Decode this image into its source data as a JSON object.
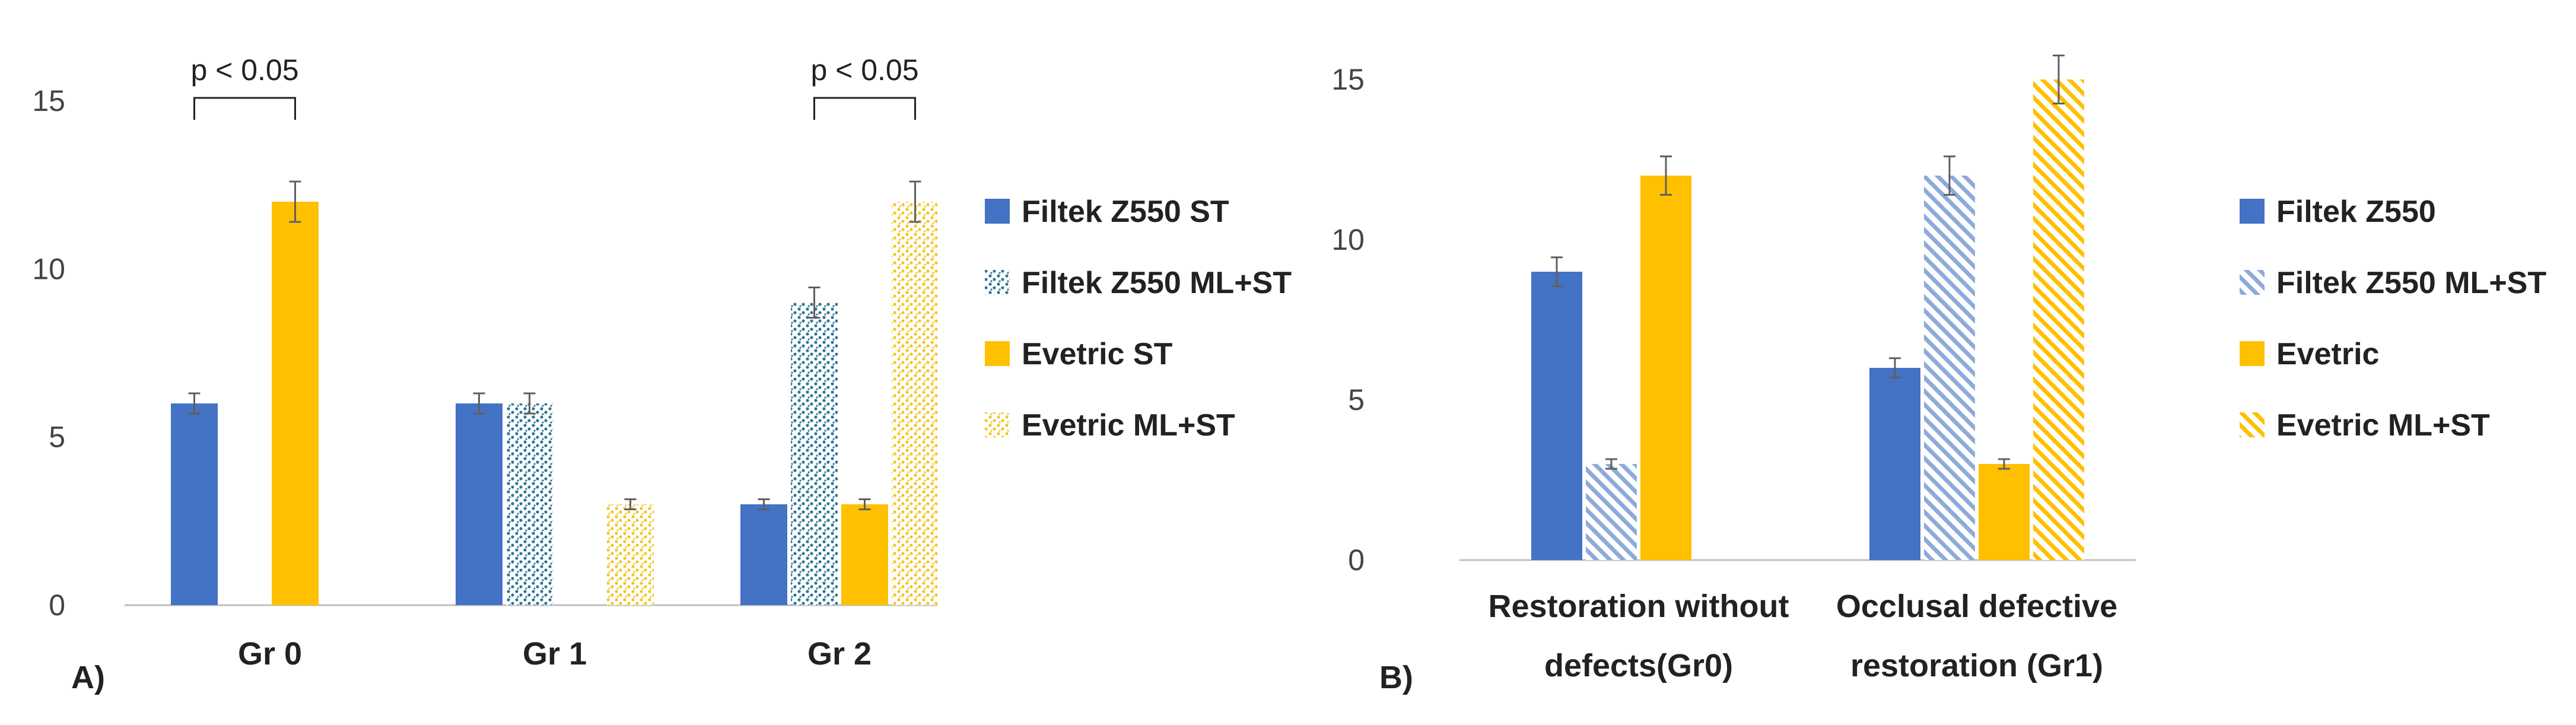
{
  "colors": {
    "blue": "#4472C4",
    "orange": "#FFC000",
    "dot_blue": "#2E7596",
    "dot_yellow": "#F2C61F",
    "hatch_blue": "#8EAADB",
    "hatch_yellow": "#FFC000",
    "axis": "#BFBFBF",
    "error": "#606060"
  },
  "chart_data": [
    {
      "panel": "A)",
      "type": "bar",
      "categories": [
        "Gr 0",
        "Gr 1",
        "Gr 2"
      ],
      "ylim": [
        0,
        15
      ],
      "yticks": [
        0,
        5,
        10,
        15
      ],
      "grid": false,
      "legend_position": "right",
      "series": [
        {
          "name": "Filtek Z550 ST",
          "style": "solid-blue",
          "values": [
            6,
            6,
            3
          ],
          "errors": [
            0.3,
            0.3,
            0.15
          ]
        },
        {
          "name": "Filtek Z550 ML+ST",
          "style": "dots-blue",
          "values": [
            0,
            6,
            9
          ],
          "errors": [
            0,
            0.3,
            0.45
          ]
        },
        {
          "name": "Evetric ST",
          "style": "solid-yellow",
          "values": [
            12,
            0,
            3
          ],
          "errors": [
            0.6,
            0,
            0.15
          ]
        },
        {
          "name": "Evetric ML+ST",
          "style": "dots-yellow",
          "values": [
            0,
            3,
            12
          ],
          "errors": [
            0,
            0.15,
            0.6
          ]
        }
      ],
      "annotations": [
        {
          "text": "p < 0.05",
          "category": 0,
          "from_series": 0,
          "to_series": 2,
          "level": 15
        },
        {
          "text": "p < 0.05",
          "category": 2,
          "from_series": 1,
          "to_series": 3,
          "level": 15
        }
      ]
    },
    {
      "panel": "B)",
      "type": "bar",
      "categories": [
        [
          "Restoration without",
          "defects(Gr0)"
        ],
        [
          "Occlusal defective",
          "restoration (Gr1)"
        ]
      ],
      "ylim": [
        0,
        16
      ],
      "yticks": [
        0,
        5,
        10,
        15
      ],
      "grid": false,
      "legend_position": "right",
      "series": [
        {
          "name": "Filtek Z550",
          "style": "solid-blue",
          "values": [
            9,
            6
          ],
          "errors": [
            0.45,
            0.3
          ]
        },
        {
          "name": "Filtek Z550 ML+ST",
          "style": "hatch-blue",
          "values": [
            3,
            12
          ],
          "errors": [
            0.15,
            0.6
          ]
        },
        {
          "name": "Evetric",
          "style": "solid-yellow",
          "values": [
            12,
            3
          ],
          "errors": [
            0.6,
            0.15
          ]
        },
        {
          "name": "Evetric ML+ST",
          "style": "hatch-yellow",
          "values": [
            0,
            15
          ],
          "errors": [
            0,
            0.75
          ]
        }
      ],
      "annotations": []
    }
  ]
}
